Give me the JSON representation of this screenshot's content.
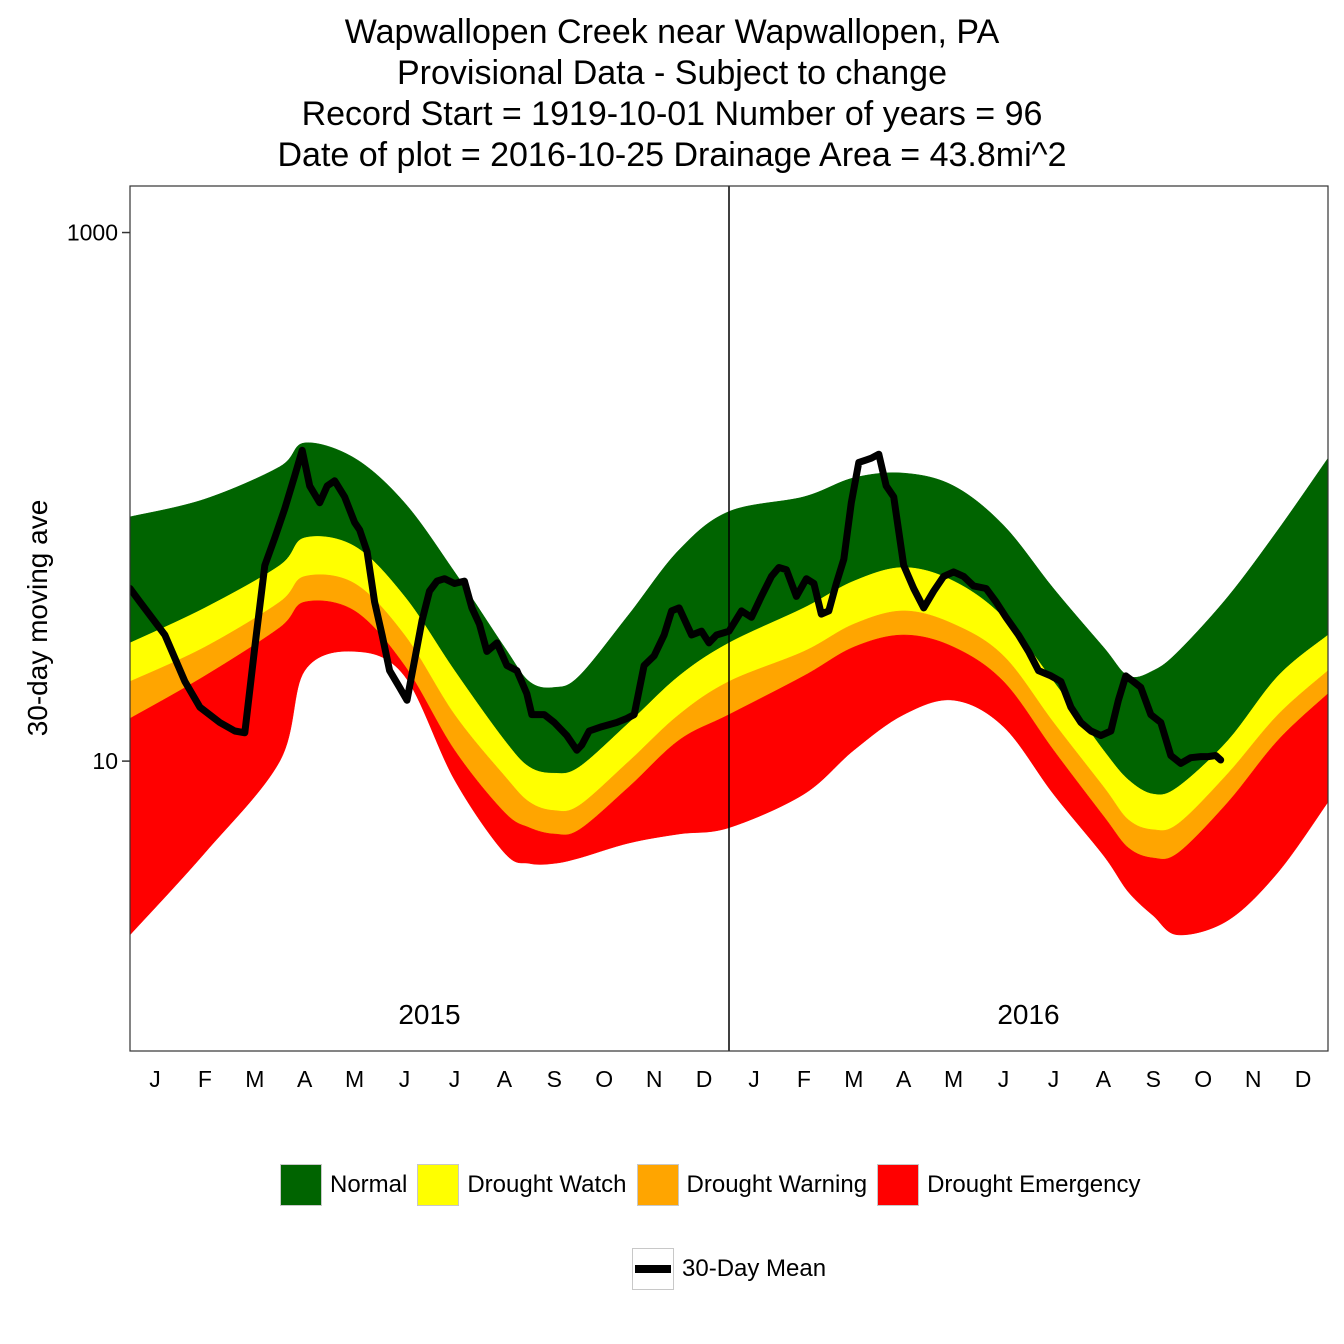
{
  "titles": {
    "line1": "Wapwallopen Creek near Wapwallopen, PA",
    "line2": "Provisional Data - Subject to change",
    "line3": "Record Start = 1919-10-01  Number of years = 96",
    "line4": "Date of plot = 2016-10-25  Drainage Area = 43.8mi^2"
  },
  "colors": {
    "normal": "#006400",
    "watch": "#FFFF00",
    "warning": "#FFA500",
    "emergency": "#FF0000",
    "mean": "#000000"
  },
  "legend": {
    "bands": [
      {
        "label": "Normal",
        "color": "#006400"
      },
      {
        "label": "Drought Watch",
        "color": "#FFFF00"
      },
      {
        "label": "Drought Warning",
        "color": "#FFA500"
      },
      {
        "label": "Drought Emergency",
        "color": "#FF0000"
      }
    ],
    "line": {
      "label": "30-Day Mean",
      "color": "#000000"
    }
  },
  "chart_data": {
    "type": "area",
    "title": "Wapwallopen Creek near Wapwallopen, PA",
    "ylabel": "30-day moving ave",
    "y_scale": "log10",
    "ylim": [
      0.8,
      1500
    ],
    "y_ticks": [
      {
        "value": 10,
        "label": "10"
      },
      {
        "value": 1000,
        "label": "1000"
      }
    ],
    "x_unit": "month index (0 = start of Jan 2015)",
    "xlim": [
      0,
      24
    ],
    "x_ticks": [
      {
        "value": 0.5,
        "label": "J"
      },
      {
        "value": 1.5,
        "label": "F"
      },
      {
        "value": 2.5,
        "label": "M"
      },
      {
        "value": 3.5,
        "label": "A"
      },
      {
        "value": 4.5,
        "label": "M"
      },
      {
        "value": 5.5,
        "label": "J"
      },
      {
        "value": 6.5,
        "label": "J"
      },
      {
        "value": 7.5,
        "label": "A"
      },
      {
        "value": 8.5,
        "label": "S"
      },
      {
        "value": 9.5,
        "label": "O"
      },
      {
        "value": 10.5,
        "label": "N"
      },
      {
        "value": 11.5,
        "label": "D"
      },
      {
        "value": 12.5,
        "label": "J"
      },
      {
        "value": 13.5,
        "label": "F"
      },
      {
        "value": 14.5,
        "label": "M"
      },
      {
        "value": 15.5,
        "label": "A"
      },
      {
        "value": 16.5,
        "label": "M"
      },
      {
        "value": 17.5,
        "label": "J"
      },
      {
        "value": 18.5,
        "label": "J"
      },
      {
        "value": 19.5,
        "label": "A"
      },
      {
        "value": 20.5,
        "label": "S"
      },
      {
        "value": 21.5,
        "label": "O"
      },
      {
        "value": 22.5,
        "label": "N"
      },
      {
        "value": 23.5,
        "label": "D"
      }
    ],
    "year_labels": [
      {
        "x": 6,
        "label": "2015"
      },
      {
        "x": 18,
        "label": "2016"
      }
    ],
    "year_divider_x": 12,
    "bands": {
      "x": [
        0,
        1.5,
        3,
        3.5,
        4.5,
        5.5,
        6.5,
        7.5,
        8,
        8.5,
        9,
        10,
        11,
        12,
        13.5,
        14.5,
        15.5,
        16.5,
        17.5,
        18.5,
        19.5,
        20,
        20.5,
        21,
        22,
        23,
        24
      ],
      "normal_top": [
        84,
        98,
        130,
        160,
        140,
        95,
        52,
        27,
        20,
        19,
        21,
        36,
        63,
        88,
        100,
        118,
        123,
        110,
        78,
        45,
        27,
        21,
        22,
        26,
        42,
        75,
        140
      ],
      "watch_top": [
        28,
        38,
        55,
        70,
        65,
        42,
        22,
        12,
        9.5,
        9.0,
        9.5,
        14,
        21,
        28,
        38,
        48,
        54,
        48,
        35,
        20,
        11,
        8.5,
        7.5,
        8,
        12,
        21,
        30
      ],
      "warning_top": [
        20,
        27,
        40,
        50,
        47,
        30,
        15,
        8.8,
        7.0,
        6.5,
        6.8,
        10,
        15,
        20,
        26,
        33,
        37,
        33,
        25,
        14,
        8,
        6.0,
        5.5,
        5.8,
        9,
        15,
        22
      ],
      "emerg_top": [
        14.5,
        21,
        32,
        40,
        37,
        23,
        11,
        6.4,
        5.6,
        5.3,
        5.5,
        8.0,
        12,
        15,
        21,
        27,
        30,
        27,
        20,
        11,
        6.2,
        4.7,
        4.3,
        4.5,
        7.0,
        12,
        18
      ],
      "emerg_bottom": [
        2.2,
        4.5,
        10,
        22,
        26,
        21,
        8.5,
        4.5,
        4.1,
        4.1,
        4.3,
        4.9,
        5.3,
        5.6,
        7.5,
        11,
        15,
        17,
        13.5,
        7.5,
        4.4,
        3.2,
        2.6,
        2.2,
        2.5,
        3.8,
        7.0
      ]
    },
    "series": [
      {
        "name": "30-Day Mean",
        "x": [
          0,
          0.2,
          0.7,
          1.1,
          1.4,
          1.8,
          2.1,
          2.3,
          2.5,
          2.7,
          2.9,
          3.1,
          3.3,
          3.45,
          3.6,
          3.8,
          3.95,
          4.1,
          4.3,
          4.5,
          4.6,
          4.75,
          4.9,
          5.05,
          5.2,
          5.4,
          5.55,
          5.7,
          5.85,
          6.0,
          6.15,
          6.3,
          6.5,
          6.7,
          6.85,
          7.0,
          7.15,
          7.35,
          7.55,
          7.75,
          7.95,
          8.05,
          8.3,
          8.5,
          8.75,
          8.95,
          9.05,
          9.2,
          9.45,
          9.75,
          9.95,
          10.1,
          10.3,
          10.5,
          10.7,
          10.85,
          11.0,
          11.25,
          11.45,
          11.6,
          11.75,
          12.0,
          12.25,
          12.45,
          12.65,
          12.85,
          13.0,
          13.15,
          13.35,
          13.55,
          13.7,
          13.85,
          14.0,
          14.15,
          14.3,
          14.45,
          14.6,
          14.75,
          14.85,
          15.0,
          15.15,
          15.3,
          15.5,
          15.7,
          15.9,
          16.1,
          16.3,
          16.5,
          16.7,
          16.9,
          17.15,
          17.35,
          17.55,
          17.8,
          18.0,
          18.2,
          18.45,
          18.65,
          18.85,
          19.05,
          19.25,
          19.45,
          19.65,
          19.8,
          19.95,
          20.1,
          20.25,
          20.45,
          20.65,
          20.85,
          21.05,
          21.25,
          21.45,
          21.6,
          21.75,
          21.85
        ],
        "values": [
          45,
          40,
          30,
          20,
          16,
          14,
          13,
          12.8,
          27,
          55,
          70,
          90,
          120,
          150,
          110,
          95,
          110,
          115,
          100,
          80,
          75,
          62,
          40,
          30,
          22,
          19,
          17,
          24,
          34,
          44,
          48,
          49,
          47,
          48,
          38,
          33,
          26,
          28,
          23,
          22,
          18,
          15,
          15,
          14,
          12.5,
          11,
          11.5,
          13,
          13.5,
          14,
          14.5,
          15,
          23,
          25,
          30,
          37,
          38,
          30,
          31,
          28,
          30,
          31,
          37,
          35,
          42,
          50,
          54,
          53,
          42,
          49,
          47,
          36,
          37,
          47,
          58,
          95,
          135,
          138,
          140,
          145,
          110,
          100,
          55,
          45,
          38,
          44,
          50,
          52,
          50,
          46,
          45,
          40,
          35,
          30,
          26,
          22,
          21,
          20,
          16,
          14,
          13,
          12.5,
          13,
          17,
          21,
          20,
          19,
          15,
          14,
          10.5,
          9.8,
          10.3,
          10.4,
          10.4,
          10.5,
          10.1
        ]
      }
    ]
  }
}
